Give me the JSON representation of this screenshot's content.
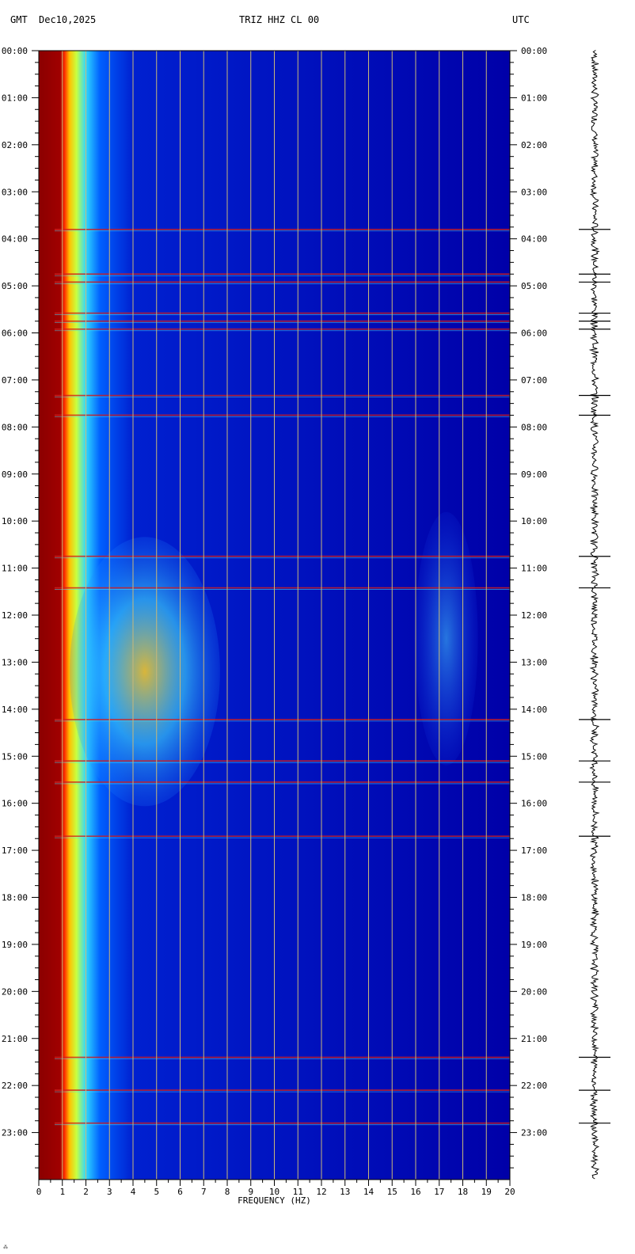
{
  "header": {
    "left_tz": "GMT",
    "date": "Dec10,2025",
    "station": "TRIZ HHZ CL 00",
    "right_tz": "UTC"
  },
  "corner_mark": "⁂",
  "colors": {
    "background": "#0000a0",
    "grid": "#c8b878",
    "noise_low": "#8b0000",
    "seismogram": "#000000"
  },
  "chart_data": {
    "type": "heatmap",
    "title": "TRIZ HHZ CL 00",
    "xlabel": "FREQUENCY (HZ)",
    "ylabel": "",
    "xlim": [
      0,
      20
    ],
    "ylim": [
      "00:00",
      "24:00"
    ],
    "x_ticks": [
      "0",
      "1",
      "2",
      "3",
      "4",
      "5",
      "6",
      "7",
      "8",
      "9",
      "10",
      "11",
      "12",
      "13",
      "14",
      "15",
      "16",
      "17",
      "18",
      "19",
      "20"
    ],
    "y_ticks": [
      "00:00",
      "01:00",
      "02:00",
      "03:00",
      "04:00",
      "05:00",
      "06:00",
      "07:00",
      "08:00",
      "09:00",
      "10:00",
      "11:00",
      "12:00",
      "13:00",
      "14:00",
      "15:00",
      "16:00",
      "17:00",
      "18:00",
      "19:00",
      "20:00",
      "21:00",
      "22:00",
      "23:00"
    ],
    "grid": true,
    "colormap": "jet",
    "events_hours": [
      3.8,
      4.75,
      4.92,
      5.58,
      5.75,
      5.92,
      7.33,
      7.75,
      10.75,
      11.42,
      14.22,
      15.1,
      15.55,
      16.7,
      21.4,
      22.1,
      22.8
    ]
  }
}
